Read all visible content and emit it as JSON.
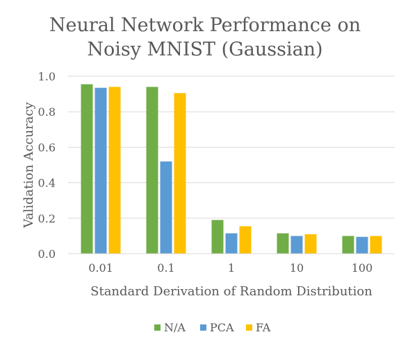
{
  "chart_data": {
    "type": "bar",
    "title_lines": [
      "Neural Network Performance on",
      "Noisy MNIST (Gaussian)"
    ],
    "xlabel": "Standard Derivation of Random Distribution",
    "ylabel": "Validation Accuracy",
    "categories": [
      "0.01",
      "0.1",
      "1",
      "10",
      "100"
    ],
    "series": [
      {
        "name": "N/A",
        "color": "#70ad47",
        "values": [
          0.955,
          0.94,
          0.19,
          0.115,
          0.1
        ]
      },
      {
        "name": "PCA",
        "color": "#5b9bd5",
        "values": [
          0.935,
          0.52,
          0.115,
          0.1,
          0.095
        ]
      },
      {
        "name": "FA",
        "color": "#ffc000",
        "values": [
          0.94,
          0.905,
          0.155,
          0.11,
          0.1
        ]
      }
    ],
    "ylim": [
      0,
      1.0
    ],
    "yticks": [
      "0.0",
      "0.2",
      "0.4",
      "0.6",
      "0.8",
      "1.0"
    ],
    "grid": true,
    "legend_position": "bottom"
  }
}
